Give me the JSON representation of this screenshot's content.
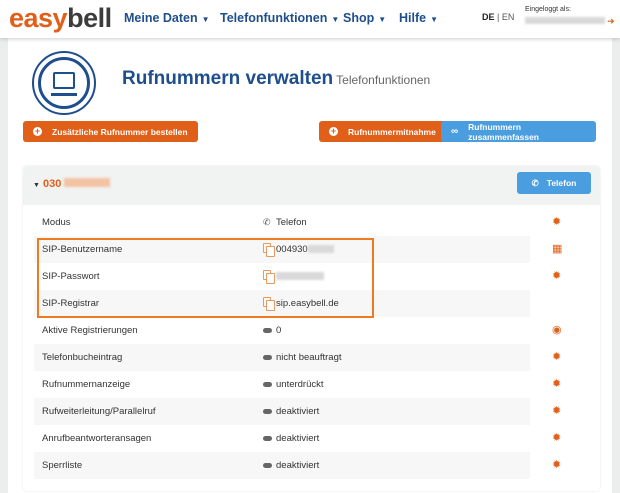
{
  "header": {
    "logo_a": "easy",
    "logo_b": "bell",
    "nav": [
      "Meine Daten",
      "Telefonfunktionen",
      "Shop",
      "Hilfe"
    ],
    "lang_de": "DE",
    "lang_sep": "|",
    "lang_en": "EN",
    "login_label": "Eingeloggt als:"
  },
  "page": {
    "title": "Rufnummern verwalten",
    "subtitle": "Telefonfunktionen"
  },
  "buttons": {
    "order": "Zusätzliche Rufnummer bestellen",
    "port": "Rufnummermitnahme",
    "merge": "Rufnummern zusammenfassen",
    "phone": "Telefon"
  },
  "number": {
    "prefix": "030"
  },
  "rows": [
    {
      "label": "Modus",
      "value": "Telefon",
      "value_icon": "phone-icon",
      "action_icon": "gear-icon"
    },
    {
      "label": "SIP-Benutzername",
      "value": "004930",
      "value_icon": "copy-icon",
      "action_icon": "qr-code-icon"
    },
    {
      "label": "SIP-Passwort",
      "value": "",
      "value_icon": "copy-icon",
      "action_icon": "gear-icon"
    },
    {
      "label": "SIP-Registrar",
      "value": "sip.easybell.de",
      "value_icon": "copy-icon",
      "action_icon": ""
    },
    {
      "label": "Aktive Registrierungen",
      "value": "0",
      "value_icon": "pill-icon",
      "action_icon": "eye-icon"
    },
    {
      "label": "Telefonbucheintrag",
      "value": "nicht beauftragt",
      "value_icon": "pill-icon",
      "action_icon": "gear-icon"
    },
    {
      "label": "Rufnummernanzeige",
      "value": "unterdrückt",
      "value_icon": "pill-icon",
      "action_icon": "gear-icon"
    },
    {
      "label": "Rufweiterleitung/Parallelruf",
      "value": "deaktiviert",
      "value_icon": "pill-icon",
      "action_icon": "gear-icon"
    },
    {
      "label": "Anrufbeantworteransagen",
      "value": "deaktiviert",
      "value_icon": "pill-icon",
      "action_icon": "gear-icon"
    },
    {
      "label": "Sperrliste",
      "value": "deaktiviert",
      "value_icon": "pill-icon",
      "action_icon": "gear-icon"
    }
  ],
  "colors": {
    "brand_orange": "#e0601a",
    "brand_blue": "#1f4e8c",
    "button_blue": "#4a9ee0"
  }
}
